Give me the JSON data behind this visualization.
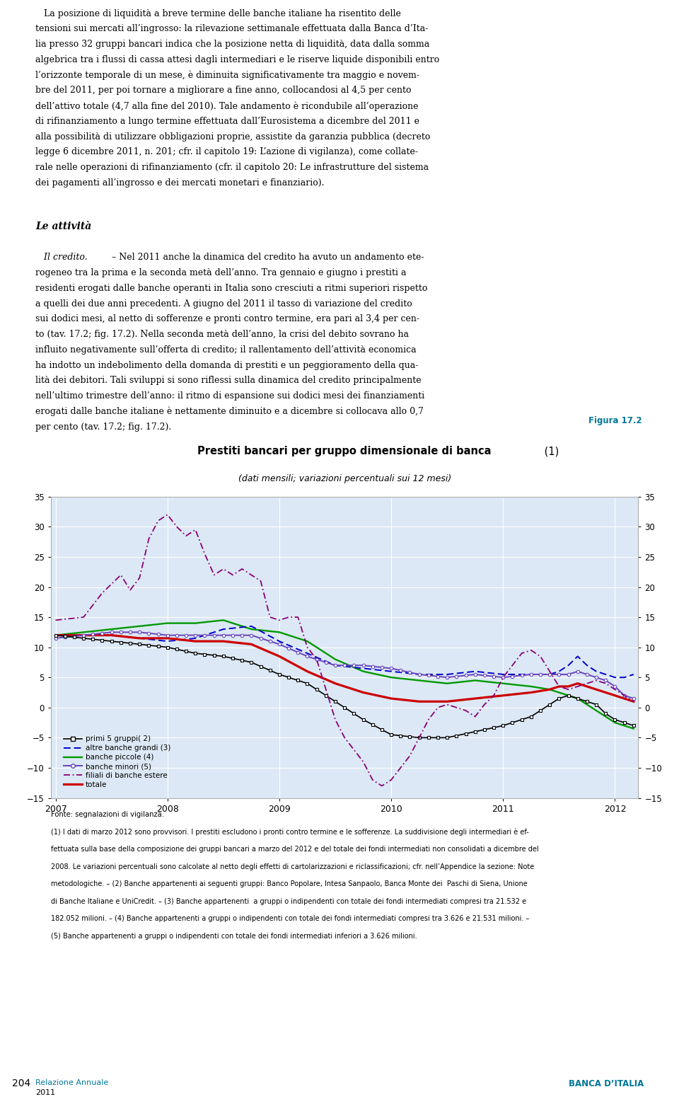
{
  "title_bold": "Prestiti bancari per gruppo dimensionale di banca",
  "title_suffix": " (1)",
  "subtitle": "(dati mensili; variazioni percentuali sui 12 mesi)",
  "figura_label": "Figura 17.2",
  "ylim": [
    -15,
    35
  ],
  "yticks": [
    -15,
    -10,
    -5,
    0,
    5,
    10,
    15,
    20,
    25,
    30,
    35
  ],
  "xlabel_years": [
    "2007",
    "2008",
    "2009",
    "2010",
    "2011",
    "2012"
  ],
  "chart_bg": "#dce8f5",
  "header_bg": "#b8cfe0",
  "fonte_text": "Fonte: segnalazioni di vigilanza.",
  "note1": "(1) I dati di marzo 2012 sono provvisori. I prestiti escludono i pronti contro termine e le sofferenze. La suddivisione degli intermediari è ef-",
  "note2": "fettuata sulla base della composizione dei gruppi bancari a marzo del 2012 e del totale dei fondi intermediati non consolidati a dicembre del",
  "note3": "2008. Le variazioni percentuali sono calcolate al netto degli effetti di cartolarizzazioni e riclassificazioni; cfr. nell’Appendice la sezione: Note",
  "note4": "metodologiche. – (2) Banche appartenenti ai seguenti gruppi: Banco Popolare, Intesa Sanpaolo, Banca Monte dei  Paschi di Siena, Unione",
  "note5": "di Banche Italiane e UniCredit. – (3) Banche appartenenti  a gruppi o indipendenti con totale dei fondi intermediati compresi tra 21.532 e",
  "note6": "182.052 milioni. – (4) Banche appartenenti a gruppi o indipendenti con totale dei fondi intermediati compresi tra 3.626 e 21.531 milioni. –",
  "note7": "(5) Banche appartenenti a gruppi o indipendenti con totale dei fondi intermediati inferiori a 3.626 milioni.",
  "footer_left": "Relazione Annuale",
  "footer_year": "2011",
  "footer_right": "BANCA D’ITALIA",
  "page_number": "204",
  "body_text_1": "   La posizione di liquidità a breve termine delle banche italiane ha risentito delle tensioni sui mercati all’ingrosso: la rilevazione settimanale effettuata dalla Banca d’Ita-lia presso 32 gruppi bancari indica che la posizione netta di liquidità, data dalla somma algebrica tra i flussi di cassa attesi dagli intermediari e le riserve liquide disponibili entro l’orizzonte temporale di un mese, è diminuita significativamente tra maggio e novem-bre del 2011, per poi tornare a migliorare a fine anno, collocandosi al 4,5 per cento dell’attivo totale (4,7 alla fine del 2010). Tale andamento è ricondubile all’operazione di rifinanziamento a lungo termine effettuata dall’Eurosistema a dicembre del 2011 e alla possibilità di utilizzare obbligazioni proprie, assistite da garanzia pubblica (decreto legge 6 dicembre 2011, n. 201; cfr. il capitolo 19: L’azione di vigilanza), come collate-rale nelle operazioni di rifinanziamento (cfr. il capitolo 20: Le infrastrutture del sistema dei pagamenti all’ingrosso e dei mercati monetari e finanziario).",
  "le_attivita": "Le attività",
  "il_credito_label": "Il credito.",
  "body_text_2": " – Nel 2011 anche la dinamica del credito ha avuto un andamento ete-rogeneo tra la prima e la seconda metà dell’anno. Tra gennaio e giugno i prestiti a residenti erogati dalle banche operanti in Italia sono cresciuti a ritmi superiori rispetto a quelli dei due anni precedenti. A giugno del 2011 il tasso di variazione del credito sui dodici mesi, al netto di sofferenze e pronti contro termine, era pari al 3,4 per cen-to (tav. 17.2; fig. 17.2). Nella seconda metà dell’anno, la crisi del debito sovrano ha influito negativamente sull’offerta di credito; il rallentamento dell’attività economica ha indotto un indebolimento della domanda di prestiti e un peggioramento della qua-lità dei debitori. Tali sviluppi si sono riflessi sulla dinamica del credito principalmente nell’ultimo trimestre dell’anno: il ritmo di espansione sui dodici mesi dei finanziamenti erogati dalle banche italiane è nettamente diminuito e a dicembre si collocava allo 0,7 per cento (tav. 17.2; fig. 17.2)."
}
